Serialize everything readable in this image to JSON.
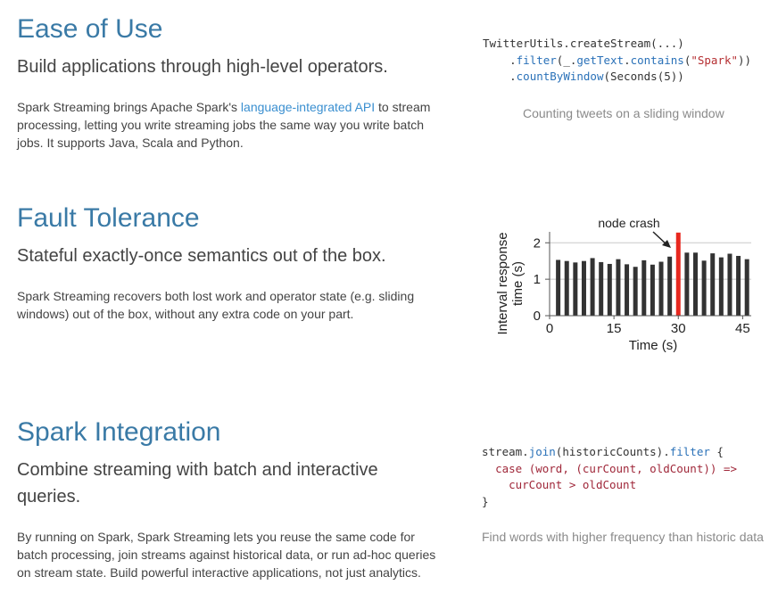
{
  "ease": {
    "title": "Ease of Use",
    "subtitle": "Build applications through high-level operators.",
    "desc_before": "Spark Streaming brings Apache Spark's ",
    "desc_link": "language-integrated API",
    "desc_after": " to stream processing, letting you write streaming jobs the same way you write batch jobs. It supports Java, Scala and Python.",
    "code": {
      "l1": "TwitterUtils.createStream(...)",
      "l2_dot": ".",
      "l2_fn": "filter",
      "l2_a": "(_.",
      "l2_fn2": "getText",
      "l2_b": ".",
      "l2_fn3": "contains",
      "l2_c": "(",
      "l2_str": "\"Spark\"",
      "l2_d": "))",
      "l3_dot": ".",
      "l3_fn": "countByWindow",
      "l3_rest": "(Seconds(5))"
    },
    "caption": "Counting tweets on a sliding window"
  },
  "fault": {
    "title": "Fault Tolerance",
    "subtitle": "Stateful exactly-once semantics out of the box.",
    "desc": "Spark Streaming recovers both lost work and operator state (e.g. sliding windows) out of the box, without any extra code on your part."
  },
  "integration": {
    "title": "Spark Integration",
    "subtitle": "Combine streaming with batch and interactive queries.",
    "desc": "By running on Spark, Spark Streaming lets you reuse the same code for batch processing, join streams against historical data, or run ad-hoc queries on stream state. Build powerful interactive applications, not just analytics.",
    "code": {
      "l1_a": "stream.",
      "l1_fn": "join",
      "l1_b": "(historicCounts).",
      "l1_fn2": "filter",
      "l1_c": " {",
      "l2": "case (word, (curCount, oldCount)) =>",
      "l3": "curCount > oldCount",
      "l4": "}"
    },
    "caption": "Find words with higher frequency than historic data"
  },
  "chart_data": {
    "type": "bar",
    "title": "",
    "annotation": "node crash",
    "xlabel": "Time (s)",
    "ylabel": "Interval response time (s)",
    "ylabel_lines": [
      "Interval response",
      "time (s)"
    ],
    "xlim": [
      0,
      47
    ],
    "ylim": [
      0,
      2.3
    ],
    "xticks": [
      "0",
      "15",
      "30",
      "45"
    ],
    "yticks": [
      "0",
      "1",
      "2"
    ],
    "grid": "horizontal",
    "colors": {
      "normal": "#333333",
      "crash": "#e8281f"
    },
    "bars": [
      {
        "x": 2,
        "y": 1.53
      },
      {
        "x": 4,
        "y": 1.5
      },
      {
        "x": 6,
        "y": 1.46
      },
      {
        "x": 8,
        "y": 1.5
      },
      {
        "x": 10,
        "y": 1.58
      },
      {
        "x": 12,
        "y": 1.47
      },
      {
        "x": 14,
        "y": 1.42
      },
      {
        "x": 16,
        "y": 1.55
      },
      {
        "x": 18,
        "y": 1.41
      },
      {
        "x": 20,
        "y": 1.34
      },
      {
        "x": 22,
        "y": 1.52
      },
      {
        "x": 24,
        "y": 1.4
      },
      {
        "x": 26,
        "y": 1.48
      },
      {
        "x": 28,
        "y": 1.62
      },
      {
        "x": 30,
        "y": 2.28,
        "crash": true
      },
      {
        "x": 32,
        "y": 1.73
      },
      {
        "x": 34,
        "y": 1.73
      },
      {
        "x": 36,
        "y": 1.51
      },
      {
        "x": 38,
        "y": 1.71
      },
      {
        "x": 40,
        "y": 1.6
      },
      {
        "x": 42,
        "y": 1.7
      },
      {
        "x": 44,
        "y": 1.64
      },
      {
        "x": 46,
        "y": 1.55
      }
    ]
  }
}
